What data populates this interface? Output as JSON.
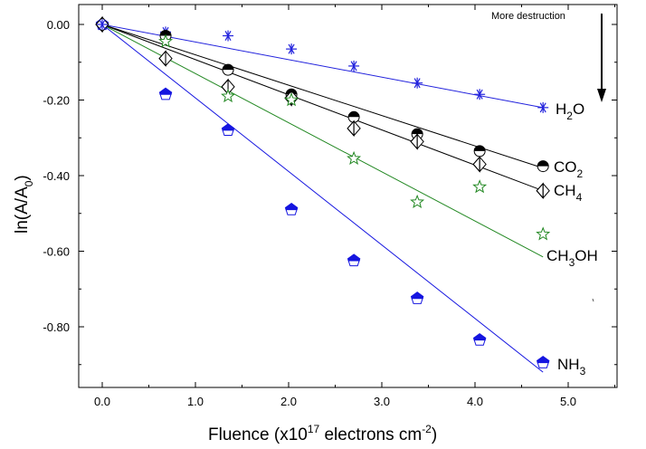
{
  "chart_data": {
    "type": "scatter",
    "xlabel": "Fluence (x10^17 electrons cm^-2)",
    "xlabel_parts": {
      "pre": "Fluence (x10",
      "sup1": "17",
      "mid": " electrons cm",
      "sup2": "-2",
      "post": ")"
    },
    "ylabel": "ln(A/A0)",
    "ylabel_parts": {
      "pre": "ln(A/A",
      "sub": "0",
      "post": ")"
    },
    "xlim": [
      -0.25,
      5.55
    ],
    "ylim": [
      -0.96,
      0.03
    ],
    "x_ticks": [
      0.0,
      1.0,
      2.0,
      3.0,
      4.0,
      5.0
    ],
    "x_tick_labels": [
      "0.0",
      "1.0",
      "2.0",
      "3.0",
      "4.0",
      "5.0"
    ],
    "y_ticks": [
      0.0,
      -0.2,
      -0.4,
      -0.6,
      -0.8
    ],
    "y_tick_labels": [
      "0.00",
      "-0.20",
      "-0.40",
      "-0.60",
      "-0.80"
    ],
    "grid": false,
    "annotation": "More destruction",
    "series": [
      {
        "name": "H2O",
        "label_parts": {
          "pre": "H",
          "sub": "2",
          "post": "O"
        },
        "color": "#2222dd",
        "marker": "asterisk",
        "x": [
          0.0,
          0.68,
          1.35,
          2.03,
          2.7,
          3.38,
          4.05,
          4.73
        ],
        "y": [
          0.0,
          -0.02,
          -0.03,
          -0.065,
          -0.11,
          -0.155,
          -0.185,
          -0.22
        ],
        "fit": [
          [
            0.0,
            0.0
          ],
          [
            4.73,
            -0.22
          ]
        ]
      },
      {
        "name": "CO2",
        "label_parts": {
          "pre": "CO",
          "sub": "2",
          "post": ""
        },
        "color": "#000000",
        "marker": "half-circle",
        "x": [
          0.0,
          0.68,
          1.35,
          2.03,
          2.7,
          3.38,
          4.05,
          4.73
        ],
        "y": [
          0.0,
          -0.03,
          -0.12,
          -0.185,
          -0.245,
          -0.29,
          -0.335,
          -0.375
        ],
        "fit": [
          [
            0.0,
            0.0
          ],
          [
            4.73,
            -0.38
          ]
        ]
      },
      {
        "name": "CH4",
        "label_parts": {
          "pre": "CH",
          "sub": "4",
          "post": ""
        },
        "color": "#000000",
        "marker": "half-diamond",
        "x": [
          0.0,
          0.68,
          1.35,
          2.03,
          2.7,
          3.38,
          4.05,
          4.73
        ],
        "y": [
          0.0,
          -0.09,
          -0.165,
          -0.195,
          -0.275,
          -0.31,
          -0.37,
          -0.44
        ],
        "fit": [
          [
            0.0,
            0.0
          ],
          [
            4.73,
            -0.44
          ]
        ]
      },
      {
        "name": "CH3OH",
        "label_parts": {
          "pre": "CH",
          "sub": "3",
          "post": "OH"
        },
        "color": "#228822",
        "marker": "star",
        "x": [
          0.0,
          0.68,
          1.35,
          2.03,
          2.7,
          3.38,
          4.05,
          4.73
        ],
        "y": [
          0.0,
          -0.045,
          -0.19,
          -0.2,
          -0.355,
          -0.47,
          -0.43,
          -0.555
        ],
        "fit": [
          [
            0.0,
            0.0
          ],
          [
            4.73,
            -0.615
          ]
        ]
      },
      {
        "name": "NH3",
        "label_parts": {
          "pre": "NH",
          "sub": "3",
          "post": ""
        },
        "color": "#1515e0",
        "marker": "pentagon-half",
        "x": [
          0.0,
          0.68,
          1.35,
          2.03,
          2.7,
          3.38,
          4.05,
          4.73
        ],
        "y": [
          0.0,
          -0.185,
          -0.28,
          -0.49,
          -0.625,
          -0.725,
          -0.835,
          -0.895
        ],
        "fit": [
          [
            0.0,
            0.0
          ],
          [
            4.73,
            -0.92
          ]
        ]
      }
    ]
  }
}
